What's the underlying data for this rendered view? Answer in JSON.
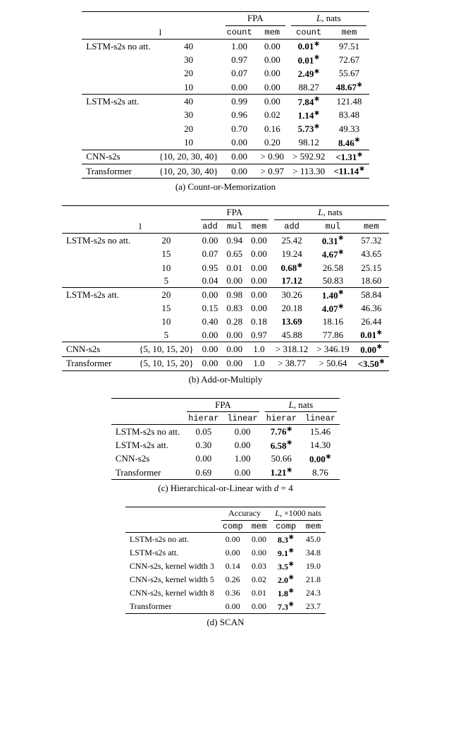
{
  "tableA": {
    "caption": "(a) Count-or-Memorization",
    "headers": {
      "l": "l",
      "fpa": "FPA",
      "L": "L, nats",
      "count": "count",
      "mem": "mem"
    },
    "groups": [
      {
        "name": "LSTM-s2s no att.",
        "rows": [
          {
            "l": "40",
            "fc": "1.00",
            "fm": "0.00",
            "lc": "0.01",
            "lcB": true,
            "lcS": true,
            "lm": "97.51"
          },
          {
            "l": "30",
            "fc": "0.97",
            "fm": "0.00",
            "lc": "0.01",
            "lcB": true,
            "lcS": true,
            "lm": "72.67"
          },
          {
            "l": "20",
            "fc": "0.07",
            "fm": "0.00",
            "lc": "2.49",
            "lcB": true,
            "lcS": true,
            "lm": "55.67"
          },
          {
            "l": "10",
            "fc": "0.00",
            "fm": "0.00",
            "lc": "88.27",
            "lm": "48.67",
            "lmB": true,
            "lmS": true
          }
        ]
      },
      {
        "name": "LSTM-s2s att.",
        "rows": [
          {
            "l": "40",
            "fc": "0.99",
            "fm": "0.00",
            "lc": "7.84",
            "lcB": true,
            "lcS": true,
            "lm": "121.48"
          },
          {
            "l": "30",
            "fc": "0.96",
            "fm": "0.02",
            "lc": "1.14",
            "lcB": true,
            "lcS": true,
            "lm": "83.48"
          },
          {
            "l": "20",
            "fc": "0.70",
            "fm": "0.16",
            "lc": "5.73",
            "lcB": true,
            "lcS": true,
            "lm": "49.33"
          },
          {
            "l": "10",
            "fc": "0.00",
            "fm": "0.20",
            "lc": "98.12",
            "lm": "8.46",
            "lmB": true,
            "lmS": true
          }
        ]
      },
      {
        "name": "CNN-s2s",
        "rows": [
          {
            "l": "{10, 20, 30, 40}",
            "fc": "0.00",
            "fm": "> 0.90",
            "lc": "> 592.92",
            "lm": "<1.31",
            "lmB": true,
            "lmS": true
          }
        ]
      },
      {
        "name": "Transformer",
        "rows": [
          {
            "l": "{10, 20, 30, 40}",
            "fc": "0.00",
            "fm": "> 0.97",
            "lc": "> 113.30",
            "lm": "<11.14",
            "lmB": true,
            "lmS": true
          }
        ]
      }
    ]
  },
  "tableB": {
    "caption": "(b) Add-or-Multiply",
    "headers": {
      "l": "l",
      "fpa": "FPA",
      "L": "L, nats",
      "add": "add",
      "mul": "mul",
      "mem": "mem"
    },
    "groups": [
      {
        "name": "LSTM-s2s no att.",
        "rows": [
          {
            "l": "20",
            "fa": "0.00",
            "fm": "0.94",
            "fe": "0.00",
            "la": "25.42",
            "lm": "0.31",
            "lmB": true,
            "lmS": true,
            "le": "57.32"
          },
          {
            "l": "15",
            "fa": "0.07",
            "fm": "0.65",
            "fe": "0.00",
            "la": "19.24",
            "lm": "4.67",
            "lmB": true,
            "lmS": true,
            "le": "43.65"
          },
          {
            "l": "10",
            "fa": "0.95",
            "fm": "0.01",
            "fe": "0.00",
            "la": "0.68",
            "laB": true,
            "laS": true,
            "lm": "26.58",
            "le": "25.15"
          },
          {
            "l": "5",
            "fa": "0.04",
            "fm": "0.00",
            "fe": "0.00",
            "la": "17.12",
            "laB": true,
            "lm": "50.83",
            "le": "18.60"
          }
        ]
      },
      {
        "name": "LSTM-s2s att.",
        "rows": [
          {
            "l": "20",
            "fa": "0.00",
            "fm": "0.98",
            "fe": "0.00",
            "la": "30.26",
            "lm": "1.40",
            "lmB": true,
            "lmS": true,
            "le": "58.84"
          },
          {
            "l": "15",
            "fa": "0.15",
            "fm": "0.83",
            "fe": "0.00",
            "la": "20.18",
            "lm": "4.07",
            "lmB": true,
            "lmS": true,
            "le": "46.36"
          },
          {
            "l": "10",
            "fa": "0.40",
            "fm": "0.28",
            "fe": "0.18",
            "la": "13.69",
            "laB": true,
            "lm": "18.16",
            "le": "26.44"
          },
          {
            "l": "5",
            "fa": "0.00",
            "fm": "0.00",
            "fe": "0.97",
            "la": "45.88",
            "lm": "77.86",
            "le": "0.01",
            "leB": true,
            "leS": true
          }
        ]
      },
      {
        "name": "CNN-s2s",
        "rows": [
          {
            "l": "{5, 10, 15, 20}",
            "fa": "0.00",
            "fm": "0.00",
            "fe": "1.0",
            "la": "> 318.12",
            "lm": "> 346.19",
            "le": "0.00",
            "leB": true,
            "leS": true
          }
        ]
      },
      {
        "name": "Transformer",
        "rows": [
          {
            "l": "{5, 10, 15, 20}",
            "fa": "0.00",
            "fm": "0.00",
            "fe": "1.0",
            "la": "> 38.77",
            "lm": "> 50.64",
            "le": "<3.50",
            "leB": true,
            "leS": true
          }
        ]
      }
    ]
  },
  "tableC": {
    "caption": "(c) Hierarchical-or-Linear with d = 4",
    "headers": {
      "fpa": "FPA",
      "L": "L, nats",
      "hier": "hierar",
      "lin": "linear"
    },
    "rows": [
      {
        "name": "LSTM-s2s no att.",
        "fh": "0.05",
        "fl": "0.00",
        "lh": "7.76",
        "lhB": true,
        "lhS": true,
        "ll": "15.46"
      },
      {
        "name": "LSTM-s2s att.",
        "fh": "0.30",
        "fl": "0.00",
        "lh": "6.58",
        "lhB": true,
        "lhS": true,
        "ll": "14.30"
      },
      {
        "name": "CNN-s2s",
        "fh": "0.00",
        "fl": "1.00",
        "lh": "50.66",
        "ll": "0.00",
        "llB": true,
        "llS": true
      },
      {
        "name": "Transformer",
        "fh": "0.69",
        "fl": "0.00",
        "lh": "1.21",
        "lhB": true,
        "lhS": true,
        "ll": "8.76"
      }
    ]
  },
  "tableD": {
    "caption": "(d) SCAN",
    "headers": {
      "acc": "Accuracy",
      "L": "L, ×1000 nats",
      "comp": "comp",
      "mem": "mem"
    },
    "rows": [
      {
        "name": "LSTM-s2s no att.",
        "ac": "0.00",
        "am": "0.00",
        "lc": "8.3",
        "lcB": true,
        "lcS": true,
        "lm": "45.0"
      },
      {
        "name": "LSTM-s2s att.",
        "ac": "0.00",
        "am": "0.00",
        "lc": "9.1",
        "lcB": true,
        "lcS": true,
        "lm": "34.8"
      },
      {
        "name": "CNN-s2s, kernel width 3",
        "ac": "0.14",
        "am": "0.03",
        "lc": "3.5",
        "lcB": true,
        "lcS": true,
        "lm": "19.0"
      },
      {
        "name": "CNN-s2s, kernel width 5",
        "ac": "0.26",
        "am": "0.02",
        "lc": "2.0",
        "lcB": true,
        "lcS": true,
        "lm": "21.8"
      },
      {
        "name": "CNN-s2s, kernel width 8",
        "ac": "0.36",
        "am": "0.01",
        "lc": "1.8",
        "lcB": true,
        "lcS": true,
        "lm": "24.3"
      },
      {
        "name": "Transformer",
        "ac": "0.00",
        "am": "0.00",
        "lc": "7.3",
        "lcB": true,
        "lcS": true,
        "lm": "23.7"
      }
    ]
  }
}
